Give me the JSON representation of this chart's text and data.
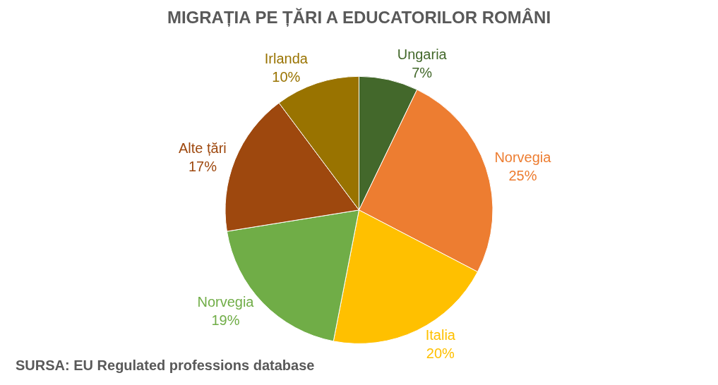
{
  "chart_data": {
    "type": "pie",
    "title": "MIGRAȚIA PE ȚĂRI A EDUCATORILOR ROMÂNI",
    "categories": [
      "Ungaria",
      "Norvegia",
      "Italia",
      "Norvegia",
      "Alte țări",
      "Irlanda"
    ],
    "values": [
      7,
      25,
      20,
      19,
      17,
      10
    ],
    "value_labels": [
      "7%",
      "25%",
      "20%",
      "19%",
      "17%",
      "10%"
    ],
    "colors": [
      "#43682b",
      "#ed7d31",
      "#ffc000",
      "#70ad47",
      "#9e480e",
      "#997300"
    ],
    "annotations": [
      "SURSA: EU Regulated professions database"
    ],
    "legend": false
  }
}
